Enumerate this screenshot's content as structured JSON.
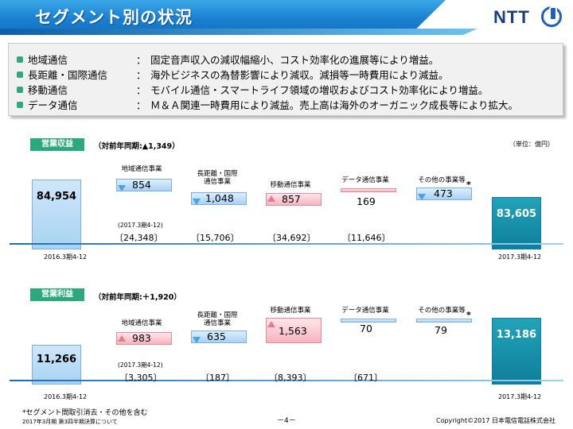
{
  "header": {
    "title": "セグメント別の状況",
    "logo_text": "NTT"
  },
  "summary": [
    {
      "key": "地域通信",
      "value": "固定音声収入の減収幅縮小、コスト効率化の進展等により増益。"
    },
    {
      "key": "長距離・国際通信",
      "value": "海外ビジネスの為替影響により減収。減損等一時費用により減益。"
    },
    {
      "key": "移動通信",
      "value": "モバイル通信・スマートライフ領域の増収およびコスト効率化により増益。"
    },
    {
      "key": "データ通信",
      "value": "Ｍ＆Ａ関連一時費用により減益。売上高は海外のオーガニック成長等により拡大。"
    }
  ],
  "summary_colon": "：",
  "unit": "（単位：億円）",
  "revenue": {
    "label": "営業収益",
    "yoy": "（対前年同期:▲1,349）",
    "start_value": "84,954",
    "end_value": "83,605",
    "start_period": "2016.3期4-12",
    "end_period": "2017.3期4-12",
    "segments": [
      {
        "label": "地域通信事業",
        "value": "854",
        "bracket": "〔24,348〕"
      },
      {
        "label": "長距離・国際\n通信事業",
        "value": "1,048",
        "bracket": "〔15,706〕"
      },
      {
        "label": "移動通信事業",
        "value": "857",
        "bracket": "〔34,692〕"
      },
      {
        "label": "データ通信事業",
        "value": "169",
        "bracket": "〔11,646〕"
      },
      {
        "label": "その他の事業等",
        "value": "473",
        "bracket": ""
      }
    ],
    "bracket_caption": "(2017.3期4-12)"
  },
  "profit": {
    "label": "営業利益",
    "yoy": "（対前年同期:＋1,920）",
    "start_value": "11,266",
    "end_value": "13,186",
    "start_period": "2016.3期4-12",
    "end_period": "2017.3期4-12",
    "segments": [
      {
        "label": "地域通信事業",
        "value": "983",
        "bracket": "〔3,305〕"
      },
      {
        "label": "長距離・国際\n通信事業",
        "value": "635",
        "bracket": "〔187〕"
      },
      {
        "label": "移動通信事業",
        "value": "1,563",
        "bracket": "〔8,393〕"
      },
      {
        "label": "データ通信事業",
        "value": "70",
        "bracket": "〔671〕"
      },
      {
        "label": "その他の事業等",
        "value": "79",
        "bracket": ""
      }
    ],
    "bracket_caption": "(2017.3期4-12)"
  },
  "star": "*",
  "footer": {
    "note": "*セグメント間取引消去・その他を含む",
    "doc": "2017年3月期 第3四半期決算について",
    "page": "－4－",
    "copyright": "Copyright©2017 日本電信電話株式会社"
  }
}
